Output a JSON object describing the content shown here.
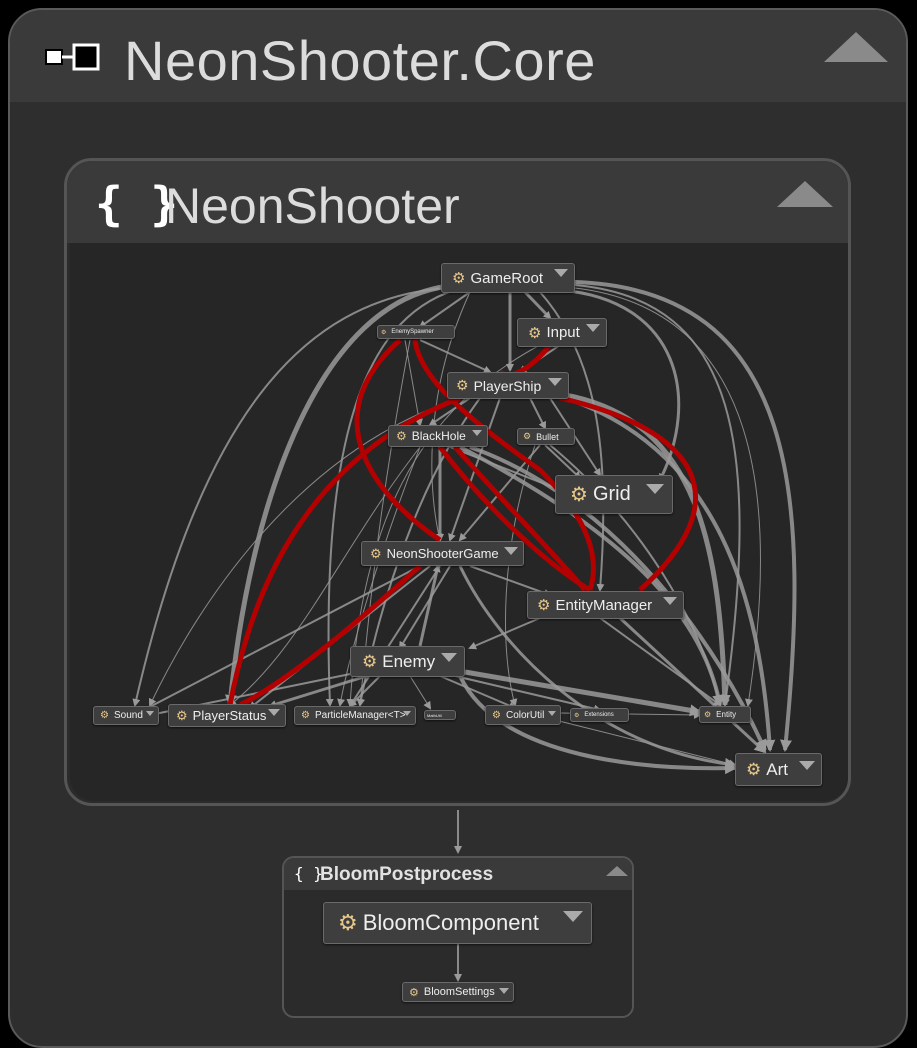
{
  "assembly": {
    "title": "NeonShooter.Core"
  },
  "namespace_main": {
    "title": "NeonShooter",
    "icon": "{ }"
  },
  "namespace_bloom": {
    "title": "BloomPostprocess",
    "icon": "{ }"
  },
  "nodes": {
    "gameroot": "GameRoot",
    "enemyspawner": "EnemySpawner",
    "input": "Input",
    "playership": "PlayerShip",
    "blackhole": "BlackHole",
    "bullet": "Bullet",
    "grid": "Grid",
    "neonshootergame": "NeonShooterGame",
    "entitymanager": "EntityManager",
    "enemy": "Enemy",
    "sound": "Sound",
    "playerstatus": "PlayerStatus",
    "particlemanager": "ParticleManager<T>",
    "mathutil": "MathUtil",
    "colorutil": "ColorUtil",
    "extensions": "Extensions",
    "entity": "Entity",
    "art": "Art",
    "bloomcomponent": "BloomComponent",
    "bloomsettings": "BloomSettings"
  },
  "colors": {
    "edge": "#9a9a9a",
    "edge_highlight": "#b30000",
    "icon": "#e8c88a"
  }
}
